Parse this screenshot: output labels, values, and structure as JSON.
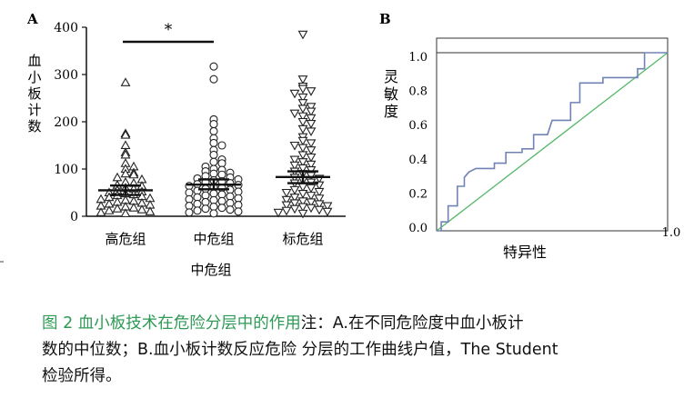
{
  "chart_data": [
    {
      "type": "scatter",
      "panel_letter": "A",
      "ylabel": "血小板计数",
      "ylim": [
        0,
        400
      ],
      "yticks": [
        "0",
        "100",
        "200",
        "300",
        "400"
      ],
      "categories": [
        "高危组",
        "中危组",
        "标危组"
      ],
      "xlabel_below": "中危组",
      "significance": "*",
      "colors": {
        "axis": "#111111",
        "marker": "#222222"
      },
      "series": [
        {
          "marker": "triangle-up",
          "values": [
            283,
            175,
            172,
            150,
            135,
            130,
            112,
            105,
            100,
            92,
            90,
            88,
            82,
            78,
            72,
            70,
            66,
            64,
            60,
            58,
            55,
            52,
            50,
            48,
            46,
            44,
            42,
            40,
            38,
            36,
            34,
            32,
            30,
            28,
            26,
            24,
            22,
            20,
            18,
            16,
            14,
            12,
            10,
            8,
            6
          ],
          "mean": 55,
          "sem_range": [
            45,
            65
          ]
        },
        {
          "marker": "circle",
          "values": [
            317,
            290,
            205,
            195,
            180,
            165,
            155,
            150,
            140,
            130,
            120,
            115,
            112,
            105,
            100,
            98,
            95,
            92,
            90,
            88,
            85,
            82,
            80,
            78,
            76,
            74,
            72,
            70,
            68,
            66,
            64,
            62,
            60,
            58,
            56,
            54,
            52,
            50,
            48,
            46,
            44,
            42,
            40,
            38,
            36,
            34,
            32,
            30,
            28,
            26,
            24,
            22,
            20,
            18,
            16,
            14,
            12,
            10,
            8,
            6
          ],
          "mean": 67,
          "sem_range": [
            57,
            78
          ]
        },
        {
          "marker": "triangle-down",
          "values": [
            385,
            290,
            275,
            270,
            265,
            260,
            252,
            240,
            232,
            228,
            222,
            218,
            212,
            208,
            200,
            196,
            185,
            180,
            168,
            160,
            155,
            150,
            145,
            140,
            130,
            125,
            120,
            115,
            110,
            108,
            102,
            98,
            95,
            90,
            86,
            82,
            80,
            76,
            72,
            70,
            66,
            62,
            60,
            56,
            52,
            50,
            48,
            44,
            40,
            38,
            35,
            32,
            30,
            28,
            26,
            24,
            22,
            20,
            18,
            16,
            14,
            12,
            10,
            8,
            6
          ],
          "mean": 83,
          "sem_range": [
            70,
            95
          ]
        }
      ]
    },
    {
      "type": "line",
      "panel_letter": "B",
      "xlabel": "特异性",
      "ylabel": "灵敏度",
      "xlim": [
        0,
        1
      ],
      "ylim": [
        0,
        1
      ],
      "yticks": [
        "0.0",
        "0.2",
        "0.4",
        "0.6",
        "0.8",
        "1.0"
      ],
      "xtick_last": "1.0",
      "colors": {
        "roc": "#7183b5",
        "reference": "#55b86a",
        "axis": "#111111"
      },
      "series": [
        {
          "name": "",
          "x": [
            0.0,
            0.02,
            0.02,
            0.05,
            0.05,
            0.09,
            0.09,
            0.12,
            0.12,
            0.14,
            0.17,
            0.25,
            0.25,
            0.3,
            0.3,
            0.37,
            0.37,
            0.42,
            0.42,
            0.48,
            0.5,
            0.58,
            0.58,
            0.62,
            0.62,
            0.72,
            0.72,
            0.87,
            0.87,
            0.9,
            0.9,
            1.0
          ],
          "y": [
            0.0,
            0.0,
            0.05,
            0.05,
            0.14,
            0.14,
            0.25,
            0.25,
            0.3,
            0.33,
            0.35,
            0.35,
            0.38,
            0.38,
            0.44,
            0.44,
            0.46,
            0.46,
            0.54,
            0.54,
            0.62,
            0.62,
            0.72,
            0.72,
            0.83,
            0.83,
            0.86,
            0.86,
            0.91,
            0.91,
            1.0,
            1.0
          ]
        },
        {
          "name": "",
          "x": [
            0,
            1
          ],
          "y": [
            0,
            1
          ]
        }
      ]
    }
  ],
  "caption": {
    "title": "图 2 血小板技术在危险分层中的作用",
    "body_line1": "注：A.在不同危险度中血小板计",
    "body_line2": "数的中位数；B.血小板计数反应危险 分层的工作曲线户值，The Student",
    "body_line3": "检验所得。"
  }
}
